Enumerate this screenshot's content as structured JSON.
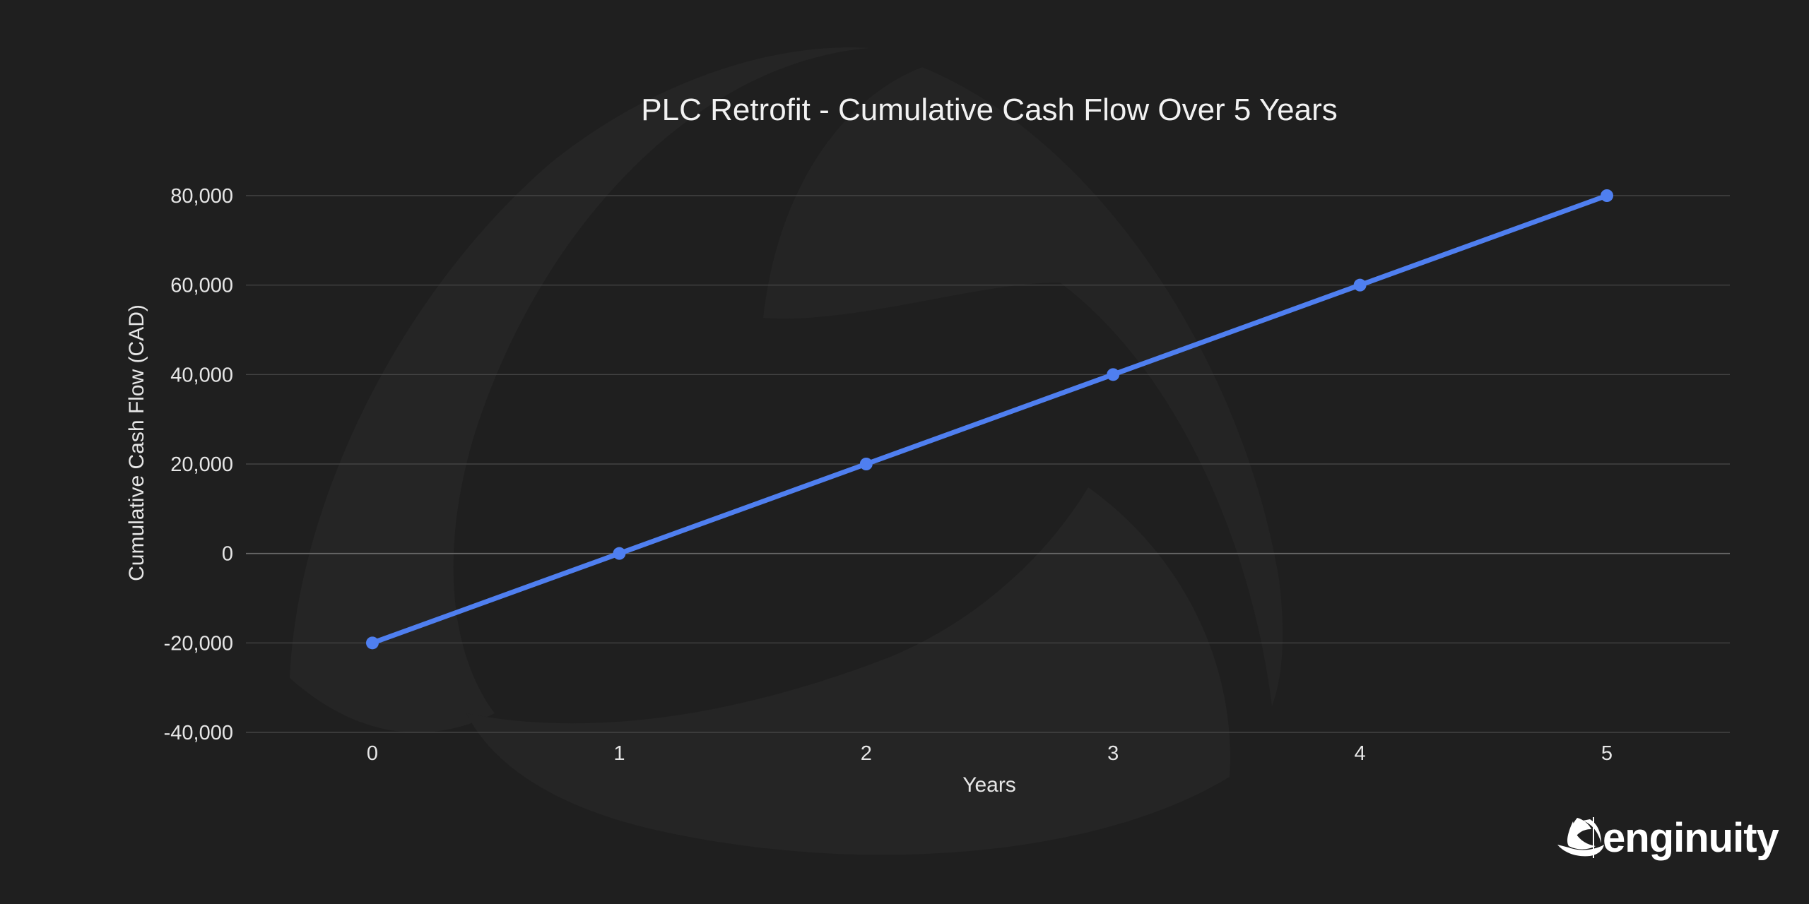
{
  "chart_data": {
    "type": "line",
    "title": "PLC Retrofit - Cumulative Cash Flow Over 5 Years",
    "xlabel": "Years",
    "ylabel": "Cumulative Cash Flow (CAD)",
    "x": [
      0,
      1,
      2,
      3,
      4,
      5
    ],
    "x_tick_labels": [
      "0",
      "1",
      "2",
      "3",
      "4",
      "5"
    ],
    "ylim": [
      -40000,
      80000
    ],
    "y_ticks": [
      -40000,
      -20000,
      0,
      20000,
      40000,
      60000,
      80000
    ],
    "y_tick_labels": [
      "-40,000",
      "-20,000",
      "0",
      "20,000",
      "40,000",
      "60,000",
      "80,000"
    ],
    "series": [
      {
        "values": [
          -20000,
          0,
          20000,
          40000,
          60000,
          80000
        ],
        "color": "#4f7ff0"
      }
    ],
    "grid": true,
    "legend": "none"
  },
  "brand": {
    "name": "enginuity",
    "logo_icon": "enginuity-tri-swoosh-icon"
  },
  "colors": {
    "background": "#1f1f1f",
    "gridline": "#4a4a4a",
    "line": "#4f7ff0",
    "text": "#f2f2f2",
    "watermark": "#262626"
  }
}
